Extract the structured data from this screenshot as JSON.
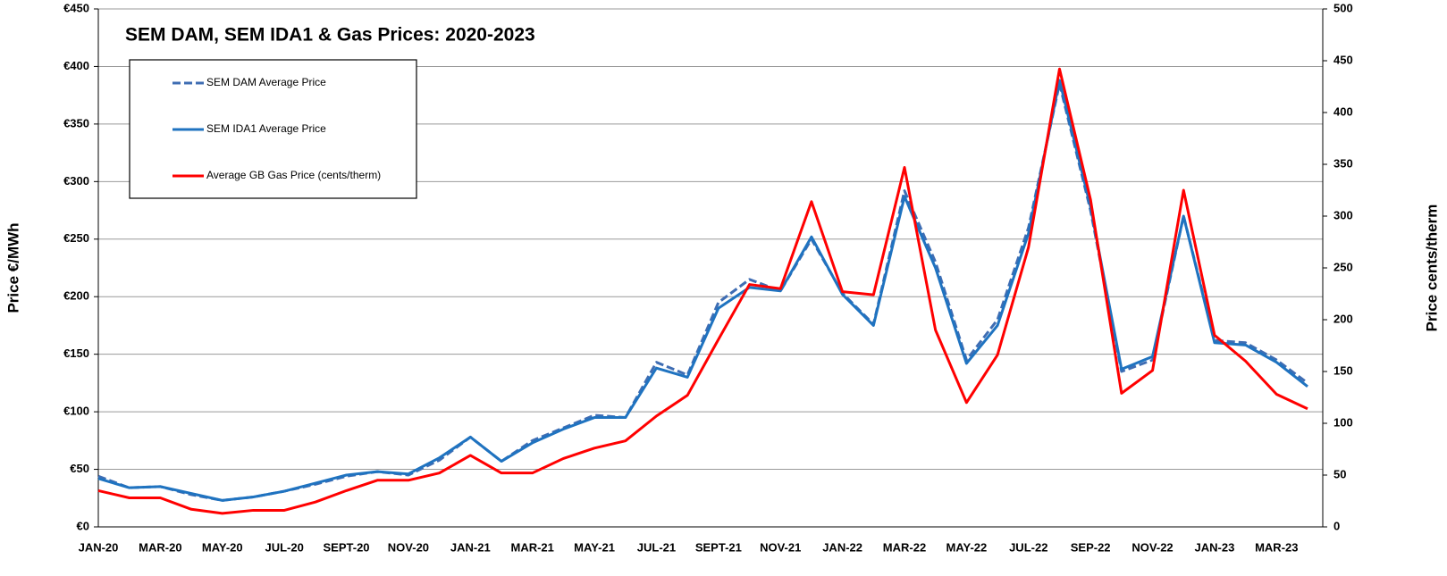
{
  "chart_data": {
    "type": "line",
    "title": "SEM DAM, SEM IDA1 & Gas Prices: 2020-2023",
    "ylabel": "Price €/MWh",
    "y2label": "Price cents/therm",
    "categories": [
      "JAN-20",
      null,
      "MAR-20",
      null,
      "MAY-20",
      null,
      "JUL-20",
      null,
      "SEPT-20",
      null,
      "NOV-20",
      null,
      "JAN-21",
      null,
      "MAR-21",
      null,
      "MAY-21",
      null,
      "JUL-21",
      null,
      "SEPT-21",
      null,
      "NOV-21",
      null,
      "JAN-22",
      null,
      "MAR-22",
      null,
      "MAY-22",
      null,
      "JUL-22",
      null,
      "SEP-22",
      null,
      "NOV-22",
      null,
      "JAN-23",
      null,
      "MAR-23",
      null
    ],
    "series": [
      {
        "name": "SEM DAM Average Price",
        "color": "#3f6db3",
        "linestyle": "dashed",
        "values": [
          44,
          34,
          35,
          28,
          23,
          26,
          31,
          37,
          44,
          48,
          45,
          58,
          78,
          57,
          75,
          86,
          97,
          95,
          143,
          132,
          195,
          215,
          205,
          250,
          203,
          176,
          292,
          230,
          145,
          180,
          260,
          385,
          275,
          135,
          145,
          270,
          162,
          160,
          145,
          125
        ]
      },
      {
        "name": "SEM IDA1 Average Price",
        "color": "#1f73c0",
        "linestyle": "solid",
        "values": [
          42,
          34,
          35,
          29,
          23,
          26,
          31,
          38,
          45,
          48,
          46,
          60,
          78,
          57,
          73,
          85,
          95,
          95,
          138,
          130,
          190,
          208,
          205,
          252,
          202,
          175,
          287,
          225,
          142,
          175,
          255,
          388,
          278,
          137,
          148,
          270,
          160,
          158,
          143,
          122
        ]
      },
      {
        "name": "Average GB Gas Price (cents/therm)",
        "color": "#ff0000",
        "linestyle": "solid",
        "axis": "y2",
        "values": [
          35,
          28,
          28,
          17,
          13,
          16,
          16,
          24,
          35,
          45,
          45,
          52,
          69,
          52,
          52,
          66,
          76,
          83,
          107,
          127,
          181,
          234,
          230,
          314,
          227,
          224,
          347,
          190,
          120,
          166,
          270,
          442,
          316,
          129,
          151,
          325,
          185,
          160,
          128,
          114
        ]
      }
    ],
    "ylim": [
      0,
      450
    ],
    "yticks": [
      {
        "value": 0,
        "label": "€0"
      },
      {
        "value": 50,
        "label": "€50"
      },
      {
        "value": 100,
        "label": "€100"
      },
      {
        "value": 150,
        "label": "€150"
      },
      {
        "value": 200,
        "label": "€200"
      },
      {
        "value": 250,
        "label": "€250"
      },
      {
        "value": 300,
        "label": "€300"
      },
      {
        "value": 350,
        "label": "€350"
      },
      {
        "value": 400,
        "label": "€400"
      },
      {
        "value": 450,
        "label": "€450"
      }
    ],
    "y2lim": [
      0,
      500
    ],
    "y2ticks": [
      0,
      50,
      100,
      150,
      200,
      250,
      300,
      350,
      400,
      450,
      500
    ],
    "grid": true
  }
}
